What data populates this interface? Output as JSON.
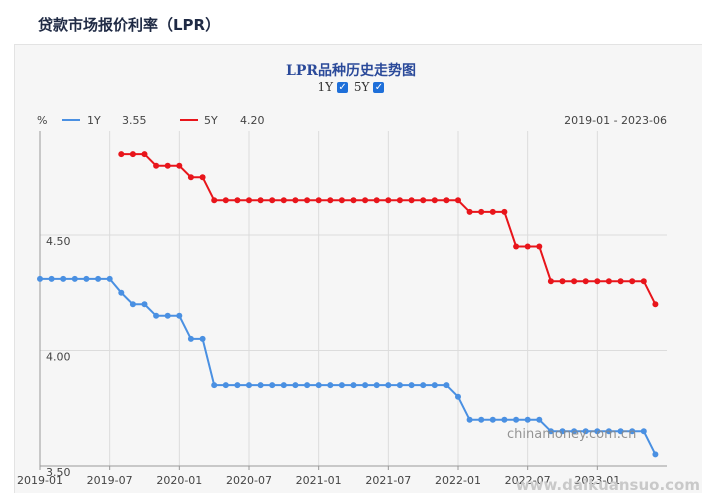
{
  "page": {
    "title": "贷款市场报价利率（LPR）"
  },
  "chart_header": {
    "title": "LPR品种历史走势图",
    "toggle_1y_label": "1Y",
    "toggle_5y_label": "5Y",
    "y_unit": "%",
    "legend_1y_name": "1Y",
    "legend_1y_value": "3.55",
    "legend_5y_name": "5Y",
    "legend_5y_value": "4.20",
    "date_range": "2019-01 - 2023-06"
  },
  "watermarks": {
    "center": "chinamoney.com.cn",
    "corner": "www.daikuansuo.com"
  },
  "chart_data": {
    "type": "line",
    "title": "LPR品种历史走势图",
    "ylabel": "%",
    "ylim": [
      3.5,
      4.95
    ],
    "yticks": [
      "3.50",
      "4.00",
      "4.50"
    ],
    "xticks": [
      "2019-01",
      "2019-07",
      "2020-01",
      "2020-07",
      "2021-01",
      "2021-07",
      "2022-01",
      "2022-07",
      "2023-01"
    ],
    "x": [
      "2019-01",
      "2019-02",
      "2019-03",
      "2019-04",
      "2019-05",
      "2019-06",
      "2019-07",
      "2019-08",
      "2019-09",
      "2019-10",
      "2019-11",
      "2019-12",
      "2020-01",
      "2020-02",
      "2020-03",
      "2020-04",
      "2020-05",
      "2020-06",
      "2020-07",
      "2020-08",
      "2020-09",
      "2020-10",
      "2020-11",
      "2020-12",
      "2021-01",
      "2021-02",
      "2021-03",
      "2021-04",
      "2021-05",
      "2021-06",
      "2021-07",
      "2021-08",
      "2021-09",
      "2021-10",
      "2021-11",
      "2021-12",
      "2022-01",
      "2022-02",
      "2022-03",
      "2022-04",
      "2022-05",
      "2022-06",
      "2022-07",
      "2022-08",
      "2022-09",
      "2022-10",
      "2022-11",
      "2022-12",
      "2023-01",
      "2023-02",
      "2023-03",
      "2023-04",
      "2023-05",
      "2023-06"
    ],
    "series": [
      {
        "name": "1Y",
        "color": "#4a90e2",
        "values": [
          4.31,
          4.31,
          4.31,
          4.31,
          4.31,
          4.31,
          4.31,
          4.25,
          4.2,
          4.2,
          4.15,
          4.15,
          4.15,
          4.05,
          4.05,
          3.85,
          3.85,
          3.85,
          3.85,
          3.85,
          3.85,
          3.85,
          3.85,
          3.85,
          3.85,
          3.85,
          3.85,
          3.85,
          3.85,
          3.85,
          3.85,
          3.85,
          3.85,
          3.85,
          3.85,
          3.85,
          3.8,
          3.7,
          3.7,
          3.7,
          3.7,
          3.7,
          3.7,
          3.7,
          3.65,
          3.65,
          3.65,
          3.65,
          3.65,
          3.65,
          3.65,
          3.65,
          3.65,
          3.55
        ]
      },
      {
        "name": "5Y",
        "color": "#e8151b",
        "values": [
          null,
          null,
          null,
          null,
          null,
          null,
          null,
          4.85,
          4.85,
          4.85,
          4.8,
          4.8,
          4.8,
          4.75,
          4.75,
          4.65,
          4.65,
          4.65,
          4.65,
          4.65,
          4.65,
          4.65,
          4.65,
          4.65,
          4.65,
          4.65,
          4.65,
          4.65,
          4.65,
          4.65,
          4.65,
          4.65,
          4.65,
          4.65,
          4.65,
          4.65,
          4.65,
          4.6,
          4.6,
          4.6,
          4.6,
          4.45,
          4.45,
          4.45,
          4.3,
          4.3,
          4.3,
          4.3,
          4.3,
          4.3,
          4.3,
          4.3,
          4.3,
          4.2
        ]
      }
    ]
  }
}
